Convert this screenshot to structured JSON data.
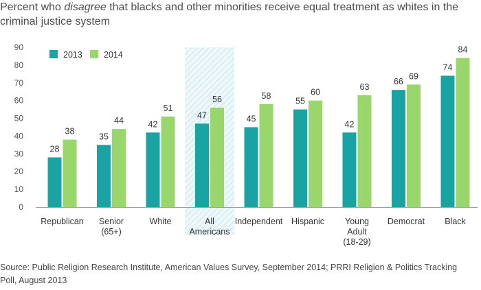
{
  "title": {
    "prefix": "Percent who ",
    "emphasis": "disagree",
    "suffix": " that blacks and other minorities receive equal treatment as whites in the criminal justice system"
  },
  "source": "Source: Public Religion Research Institute, American Values Survey, September 2014; PRRI Religion & Politics Tracking Poll, August 2013",
  "colors": {
    "2013": "#1aa3a3",
    "2014": "#99d66b",
    "highlight": "#cfe9f2",
    "axis": "#999999",
    "grid": "#dddddd"
  },
  "chart_data": {
    "type": "bar",
    "categories": [
      [
        "Republican"
      ],
      [
        "Senior",
        "(65+)"
      ],
      [
        "White"
      ],
      [
        "All",
        "Americans"
      ],
      [
        "Independent"
      ],
      [
        "Hispanic"
      ],
      [
        "Young",
        "Adult",
        "(18-29)"
      ],
      [
        "Democrat"
      ],
      [
        "Black"
      ]
    ],
    "series": [
      {
        "name": "2013",
        "values": [
          28,
          35,
          42,
          47,
          45,
          55,
          42,
          66,
          74
        ]
      },
      {
        "name": "2014",
        "values": [
          38,
          44,
          51,
          56,
          58,
          60,
          63,
          69,
          84
        ]
      }
    ],
    "yticks": [
      0,
      10,
      20,
      30,
      40,
      50,
      60,
      70,
      80,
      90
    ],
    "ylim": [
      0,
      90
    ],
    "highlight_category": 3,
    "legend_position": "top-left",
    "grid": false
  }
}
